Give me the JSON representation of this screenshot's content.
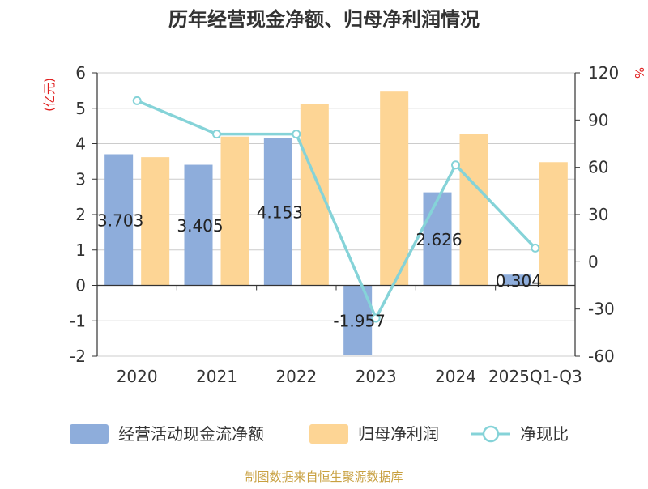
{
  "chart_data": {
    "type": "bar",
    "title": "历年经营现金净额、归母净利润情况",
    "ylabel_left": "(亿元)",
    "ylabel_right": "%",
    "categories": [
      "2020",
      "2021",
      "2022",
      "2023",
      "2024",
      "2025Q1-Q3"
    ],
    "ylim_left": [
      -2,
      6
    ],
    "yticks_left": [
      "6",
      "5",
      "4",
      "3",
      "2",
      "1",
      "0",
      "-1",
      "-2"
    ],
    "ylim_right": [
      -60,
      120
    ],
    "yticks_right": [
      "120",
      "90",
      "60",
      "30",
      "0",
      "-30",
      "-60"
    ],
    "series": [
      {
        "name": "经营活动现金流净额",
        "kind": "bar",
        "axis": "left",
        "color": "#8eaddb",
        "values": [
          3.703,
          3.405,
          4.153,
          -1.957,
          2.626,
          0.304
        ],
        "labels": [
          "3.703",
          "3.405",
          "4.153",
          "-1.957",
          "2.626",
          "0.304"
        ]
      },
      {
        "name": "归母净利润",
        "kind": "bar",
        "axis": "left",
        "color": "#fdd595",
        "values": [
          3.62,
          4.2,
          5.12,
          5.47,
          4.27,
          3.48
        ]
      },
      {
        "name": "净现比",
        "kind": "line",
        "axis": "right",
        "color": "#85d3d8",
        "values": [
          102.3,
          81.1,
          81.1,
          -35.8,
          61.5,
          8.7
        ]
      }
    ],
    "grid": true,
    "legend_position": "bottom"
  },
  "source": "制图数据来自恒生聚源数据库",
  "colors": {
    "title": "#333333",
    "axis_label": "#e02020",
    "grid": "#cccccc",
    "source": "#c8a040"
  }
}
